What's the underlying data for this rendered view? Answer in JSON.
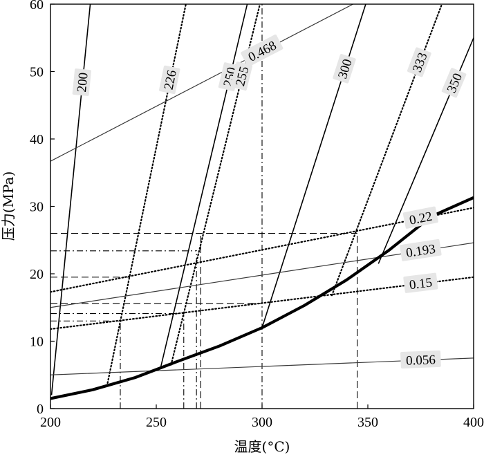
{
  "chart_data": {
    "type": "line",
    "xlabel": "温度(°C)",
    "ylabel": "压力(MPa)",
    "xlim": [
      200,
      400
    ],
    "ylim": [
      0,
      60
    ],
    "xticks": [
      200,
      250,
      300,
      350,
      400
    ],
    "yticks": [
      0,
      10,
      20,
      30,
      40,
      50,
      60
    ],
    "grid": false,
    "legend": "none",
    "saturation_curve": {
      "x": [
        200,
        220,
        240,
        250,
        260,
        280,
        300,
        320,
        340,
        360,
        380,
        400
      ],
      "y": [
        1.5,
        2.8,
        4.6,
        5.8,
        7.0,
        9.3,
        12.0,
        15.3,
        19.1,
        23.5,
        28.5,
        31.3
      ],
      "style": "thick"
    },
    "isolines": [
      {
        "label": "200",
        "style": "solid",
        "x": [
          200.5,
          218.8
        ],
        "y": [
          2.0,
          60
        ]
      },
      {
        "label": "226",
        "style": "dotted",
        "x": [
          227,
          264
        ],
        "y": [
          3.8,
          60
        ]
      },
      {
        "label": "250",
        "style": "solid",
        "x": [
          252,
          293
        ],
        "y": [
          6.0,
          60
        ]
      },
      {
        "label": "255",
        "style": "dotted",
        "x": [
          257,
          299
        ],
        "y": [
          6.5,
          60
        ]
      },
      {
        "label": "300",
        "style": "solid",
        "x": [
          300,
          349
        ],
        "y": [
          12.0,
          60
        ]
      },
      {
        "label": "333",
        "style": "dotted",
        "x": [
          333,
          385
        ],
        "y": [
          16.8,
          60
        ]
      },
      {
        "label": "350",
        "style": "solid",
        "x": [
          355,
          400
        ],
        "y": [
          21.5,
          55
        ]
      },
      {
        "label": "0.468",
        "style": "solid-thin",
        "x": [
          200,
          343
        ],
        "y": [
          36.7,
          60
        ]
      },
      {
        "label": "0.22",
        "style": "dotted",
        "x": [
          200,
          400
        ],
        "y": [
          17.3,
          29.8
        ]
      },
      {
        "label": "0.193",
        "style": "solid-thin",
        "x": [
          200,
          400
        ],
        "y": [
          15.0,
          24.6
        ]
      },
      {
        "label": "0.15",
        "style": "dotted",
        "x": [
          200,
          400
        ],
        "y": [
          11.8,
          19.5
        ]
      },
      {
        "label": "0.056",
        "style": "solid-thin",
        "x": [
          200,
          400
        ],
        "y": [
          5.0,
          7.5
        ]
      }
    ],
    "reference_lines": [
      {
        "orientation": "vertical",
        "x": 300,
        "y_end": 60,
        "style": "dash-dot"
      },
      {
        "orientation": "vertical",
        "x": 233,
        "y_end": 12.5,
        "style": "dash-dot"
      },
      {
        "orientation": "vertical",
        "x": 263,
        "y_end": 14.0,
        "style": "dash-dot"
      },
      {
        "orientation": "vertical",
        "x": 269,
        "y_end": 23.5,
        "style": "dash-dot"
      },
      {
        "orientation": "vertical",
        "x": 271,
        "y_end": 26.0,
        "style": "dash"
      },
      {
        "orientation": "vertical",
        "x": 345,
        "y_end": 26.0,
        "style": "dash"
      },
      {
        "orientation": "horizontal",
        "y": 26.0,
        "x_end": 345,
        "style": "dash"
      },
      {
        "orientation": "horizontal",
        "y": 23.4,
        "x_end": 269,
        "style": "dash-dot"
      },
      {
        "orientation": "horizontal",
        "y": 19.5,
        "x_end": 239,
        "style": "dash"
      },
      {
        "orientation": "horizontal",
        "y": 15.6,
        "x_end": 300,
        "style": "dash"
      },
      {
        "orientation": "horizontal",
        "y": 14.1,
        "x_end": 263,
        "style": "dash-dot"
      },
      {
        "orientation": "horizontal",
        "y": 13.0,
        "x_end": 234,
        "style": "dash-dot"
      }
    ]
  }
}
